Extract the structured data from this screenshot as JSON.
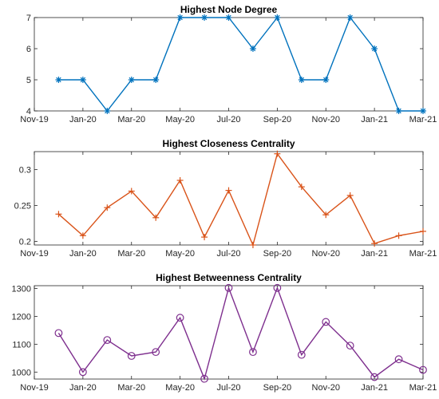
{
  "chart_data": [
    {
      "type": "line",
      "title": "Highest Node Degree",
      "xlabel": "",
      "ylabel": "",
      "xlim": [
        "2019-11",
        "2021-03"
      ],
      "ylim": [
        4,
        7
      ],
      "x_ticks": [
        "Nov-19",
        "Jan-20",
        "Mar-20",
        "May-20",
        "Jul-20",
        "Sep-20",
        "Nov-20",
        "Jan-21",
        "Mar-21"
      ],
      "y_ticks": [
        4,
        5,
        6,
        7
      ],
      "marker": "asterisk",
      "color": "#0072BD",
      "series": [
        {
          "x": [
            "2019-12",
            "2020-01",
            "2020-02",
            "2020-03",
            "2020-04",
            "2020-05",
            "2020-06",
            "2020-07",
            "2020-08",
            "2020-09",
            "2020-10",
            "2020-11",
            "2020-12",
            "2021-01",
            "2021-02",
            "2021-03"
          ],
          "y": [
            5,
            5,
            4,
            5,
            5,
            7,
            7,
            7,
            6,
            7,
            5,
            5,
            7,
            6,
            4,
            4
          ]
        }
      ]
    },
    {
      "type": "line",
      "title": "Highest Closeness Centrality",
      "xlabel": "",
      "ylabel": "",
      "xlim": [
        "2019-11",
        "2021-03"
      ],
      "ylim": [
        0.195,
        0.325
      ],
      "x_ticks": [
        "Nov-19",
        "Jan-20",
        "Mar-20",
        "May-20",
        "Jul-20",
        "Sep-20",
        "Nov-20",
        "Jan-21",
        "Mar-21"
      ],
      "y_ticks": [
        0.2,
        0.25,
        0.3
      ],
      "marker": "plus",
      "color": "#D95319",
      "series": [
        {
          "x": [
            "2019-12",
            "2020-01",
            "2020-02",
            "2020-03",
            "2020-04",
            "2020-05",
            "2020-06",
            "2020-07",
            "2020-08",
            "2020-09",
            "2020-10",
            "2020-11",
            "2020-12",
            "2021-01",
            "2021-02",
            "2021-03"
          ],
          "y": [
            0.238,
            0.208,
            0.247,
            0.27,
            0.233,
            0.285,
            0.206,
            0.271,
            0.195,
            0.322,
            0.276,
            0.237,
            0.264,
            0.197,
            0.208,
            0.214
          ]
        }
      ]
    },
    {
      "type": "line",
      "title": "Highest Betweenness Centrality",
      "xlabel": "",
      "ylabel": "",
      "xlim": [
        "2019-11",
        "2021-03"
      ],
      "ylim": [
        975,
        1310
      ],
      "x_ticks": [
        "Nov-19",
        "Jan-20",
        "Mar-20",
        "May-20",
        "Jul-20",
        "Sep-20",
        "Nov-20",
        "Jan-21",
        "Mar-21"
      ],
      "y_ticks": [
        1000,
        1100,
        1200,
        1300
      ],
      "marker": "circle",
      "color": "#7E2F8E",
      "series": [
        {
          "x": [
            "2019-12",
            "2020-01",
            "2020-02",
            "2020-03",
            "2020-04",
            "2020-05",
            "2020-06",
            "2020-07",
            "2020-08",
            "2020-09",
            "2020-10",
            "2020-11",
            "2020-12",
            "2021-01",
            "2021-02",
            "2021-03"
          ],
          "y": [
            1140,
            1000,
            1115,
            1058,
            1072,
            1195,
            976,
            1302,
            1072,
            1302,
            1062,
            1180,
            1095,
            982,
            1046,
            1008
          ]
        }
      ]
    }
  ]
}
